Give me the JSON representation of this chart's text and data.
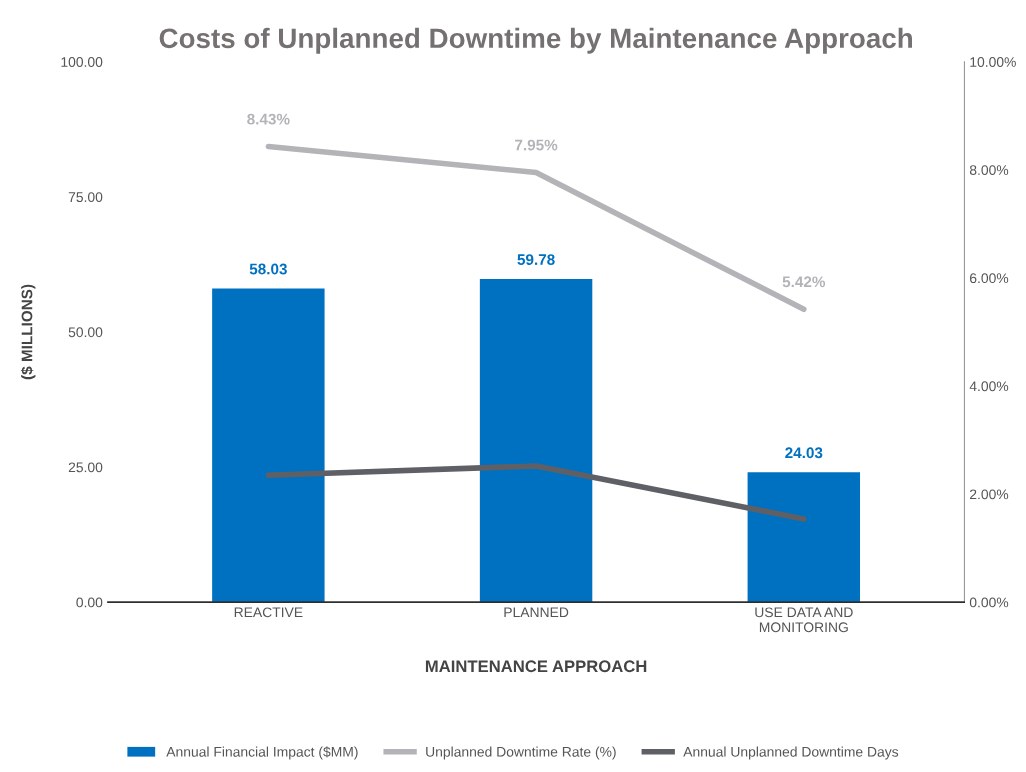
{
  "chart_data": {
    "type": "bar",
    "title": "Costs of Unplanned Downtime by Maintenance Approach",
    "xlabel": "MAINTENANCE APPROACH",
    "ylabel": "($ MILLIONS)",
    "categories": [
      "REACTIVE",
      "PLANNED",
      "USE DATA AND\nMONITORING"
    ],
    "series": [
      {
        "name": "Annual Financial Impact ($MM)",
        "color": "#0070c0",
        "values": [
          58.03,
          59.78,
          24.03
        ],
        "value_labels": [
          "58.03",
          "59.78",
          "24.03"
        ]
      },
      {
        "name": "Unplanned Downtime Rate (%)",
        "type": "line",
        "axis": "y2",
        "color": "#b4b4b8",
        "values": [
          8.43,
          7.95,
          5.42
        ],
        "value_labels": [
          "8.43%",
          "7.95%",
          "5.42%"
        ]
      },
      {
        "name": "Annual Unplanned Downtime Days",
        "type": "line",
        "axis": "y2",
        "color": "#5f6066",
        "values": [
          2.35,
          2.52,
          1.54
        ]
      }
    ],
    "ylim": [
      0,
      100
    ],
    "yticks": [
      {
        "value": 0,
        "label": "0.00"
      },
      {
        "value": 25,
        "label": "25.00"
      },
      {
        "value": 50,
        "label": "50.00"
      },
      {
        "value": 75,
        "label": "75.00"
      },
      {
        "value": 100,
        "label": "100.00"
      }
    ],
    "y2lim": [
      0,
      10
    ],
    "y2ticks": [
      {
        "value": 0,
        "label": "0.00%"
      },
      {
        "value": 2,
        "label": "2.00%"
      },
      {
        "value": 4,
        "label": "4.00%"
      },
      {
        "value": 6,
        "label": "6.00%"
      },
      {
        "value": 8,
        "label": "8.00%"
      },
      {
        "value": 10,
        "label": "10.00%"
      }
    ],
    "grid": false,
    "legend": "bottom"
  }
}
